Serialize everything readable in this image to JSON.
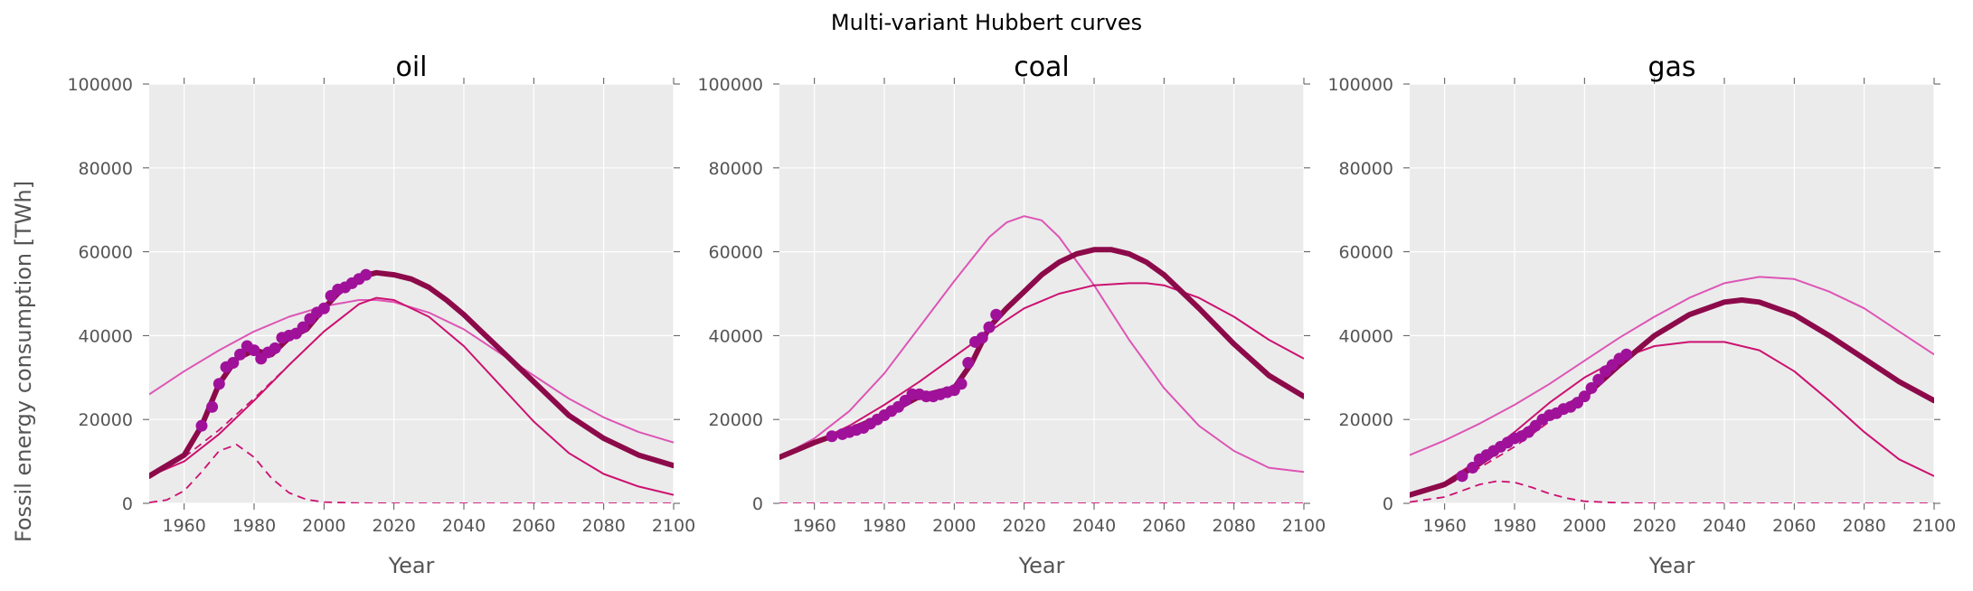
{
  "figure": {
    "suptitle": "Multi-variant Hubbert curves",
    "ylabel": "Fossil energy consumption [TWh]",
    "xlabel": "Year"
  },
  "colors": {
    "background": "#ebebeb",
    "grid": "#ffffff",
    "thick": "#8c0a4a",
    "medium": "#cc1170",
    "light": "#dd55b5",
    "marker": "#a0119a"
  },
  "chart_data": [
    {
      "type": "line",
      "title": "oil",
      "xlim": [
        1950,
        2100
      ],
      "ylim": [
        0,
        100000
      ],
      "xticks": [
        1960,
        1980,
        2000,
        2020,
        2040,
        2060,
        2080,
        2100
      ],
      "yticks": [
        0,
        20000,
        40000,
        60000,
        80000,
        100000
      ],
      "grid": true,
      "observed": {
        "x": [
          1965,
          1968,
          1970,
          1972,
          1974,
          1976,
          1978,
          1980,
          1982,
          1984,
          1986,
          1988,
          1990,
          1992,
          1994,
          1996,
          1998,
          2000,
          2002,
          2004,
          2006,
          2008,
          2010,
          2012
        ],
        "y": [
          18500,
          23000,
          28500,
          32500,
          33500,
          35500,
          37500,
          36500,
          34500,
          36000,
          37000,
          39500,
          40000,
          40500,
          42000,
          44000,
          45500,
          46500,
          49500,
          51000,
          51500,
          52500,
          53500,
          54500
        ]
      },
      "sum_curve": {
        "x": [
          1950,
          1960,
          1965,
          1970,
          1975,
          1980,
          1985,
          1990,
          1995,
          2000,
          2005,
          2010,
          2015,
          2020,
          2025,
          2030,
          2035,
          2040,
          2045,
          2050,
          2060,
          2070,
          2080,
          2090,
          2100
        ],
        "y": [
          6500,
          11500,
          18500,
          28500,
          34500,
          36500,
          35500,
          39500,
          41500,
          46500,
          51000,
          54000,
          55000,
          54500,
          53500,
          51500,
          48500,
          45000,
          41000,
          37000,
          29000,
          21000,
          15500,
          11500,
          9000
        ]
      },
      "fit_curve_a": {
        "x": [
          1950,
          1960,
          1970,
          1980,
          1990,
          2000,
          2010,
          2015,
          2020,
          2030,
          2040,
          2050,
          2060,
          2070,
          2080,
          2090,
          2100
        ],
        "y": [
          6500,
          10000,
          16500,
          24500,
          33000,
          41000,
          47500,
          49000,
          48500,
          44500,
          37500,
          28500,
          19500,
          12000,
          7000,
          4000,
          2000
        ]
      },
      "fit_curve_b": {
        "x": [
          1950,
          1960,
          1970,
          1980,
          1990,
          2000,
          2010,
          2015,
          2020,
          2030,
          2040,
          2050,
          2060,
          2070,
          2080,
          2090,
          2100
        ],
        "y": [
          26000,
          31500,
          36500,
          41000,
          44500,
          47000,
          48500,
          48500,
          48000,
          45500,
          41500,
          36000,
          30500,
          25000,
          20500,
          17000,
          14500
        ]
      },
      "component_dashed": [
        {
          "x": [
            1950,
            1955,
            1960,
            1965,
            1970,
            1975,
            1980,
            1985,
            1990,
            1995,
            2000,
            2010,
            2020,
            2100
          ],
          "y": [
            200,
            800,
            3000,
            7500,
            12500,
            14000,
            11000,
            6000,
            2500,
            900,
            300,
            50,
            0,
            0
          ]
        },
        {
          "x": [
            1950,
            1960,
            1970,
            1980,
            1990,
            2000
          ],
          "y": [
            6000,
            11000,
            17500,
            25000,
            33000,
            41000
          ]
        }
      ]
    },
    {
      "type": "line",
      "title": "coal",
      "xlim": [
        1950,
        2100
      ],
      "ylim": [
        0,
        100000
      ],
      "xticks": [
        1960,
        1980,
        2000,
        2020,
        2040,
        2060,
        2080,
        2100
      ],
      "yticks": [
        0,
        20000,
        40000,
        60000,
        80000,
        100000
      ],
      "grid": true,
      "observed": {
        "x": [
          1965,
          1968,
          1970,
          1972,
          1974,
          1976,
          1978,
          1980,
          1982,
          1984,
          1986,
          1988,
          1990,
          1992,
          1994,
          1996,
          1998,
          2000,
          2002,
          2004,
          2006,
          2008,
          2010,
          2012
        ],
        "y": [
          16000,
          16500,
          17000,
          17500,
          18000,
          19000,
          20000,
          21000,
          22000,
          23000,
          24500,
          26000,
          26000,
          25500,
          25500,
          26000,
          26500,
          27000,
          28500,
          33500,
          38500,
          39500,
          42000,
          45000
        ]
      },
      "sum_curve": {
        "x": [
          1950,
          1960,
          1970,
          1980,
          1990,
          2000,
          2005,
          2010,
          2015,
          2020,
          2025,
          2030,
          2035,
          2040,
          2045,
          2050,
          2055,
          2060,
          2070,
          2080,
          2090,
          2100
        ],
        "y": [
          11000,
          14500,
          17500,
          21000,
          25500,
          27500,
          33500,
          42000,
          46500,
          50500,
          54500,
          57500,
          59500,
          60500,
          60500,
          59500,
          57500,
          54500,
          46500,
          38000,
          30500,
          25500
        ]
      },
      "fit_curve_a": {
        "x": [
          1950,
          1960,
          1970,
          1980,
          1990,
          2000,
          2010,
          2020,
          2030,
          2040,
          2050,
          2055,
          2060,
          2070,
          2080,
          2090,
          2100
        ],
        "y": [
          11000,
          14500,
          18500,
          23500,
          29000,
          35000,
          41000,
          46500,
          50000,
          52000,
          52500,
          52500,
          52000,
          49000,
          44500,
          39000,
          34500
        ]
      },
      "fit_curve_b": {
        "x": [
          1950,
          1960,
          1970,
          1980,
          1990,
          2000,
          2010,
          2015,
          2020,
          2025,
          2030,
          2040,
          2050,
          2060,
          2070,
          2080,
          2090,
          2100
        ],
        "y": [
          11000,
          15500,
          22000,
          31000,
          42000,
          53000,
          63500,
          67000,
          68500,
          67500,
          63500,
          52000,
          39000,
          27500,
          18500,
          12500,
          8500,
          7500
        ]
      },
      "component_dashed": [
        {
          "x": [
            1950,
            2100
          ],
          "y": [
            0,
            0
          ]
        }
      ]
    },
    {
      "type": "line",
      "title": "gas",
      "xlim": [
        1950,
        2100
      ],
      "ylim": [
        0,
        100000
      ],
      "xticks": [
        1960,
        1980,
        2000,
        2020,
        2040,
        2060,
        2080,
        2100
      ],
      "yticks": [
        0,
        20000,
        40000,
        60000,
        80000,
        100000
      ],
      "grid": true,
      "observed": {
        "x": [
          1965,
          1968,
          1970,
          1972,
          1974,
          1976,
          1978,
          1980,
          1982,
          1984,
          1986,
          1988,
          1990,
          1992,
          1994,
          1996,
          1998,
          2000,
          2002,
          2004,
          2006,
          2008,
          2010,
          2012
        ],
        "y": [
          6500,
          8500,
          10500,
          11500,
          12500,
          13500,
          14500,
          15500,
          16000,
          17000,
          18500,
          20000,
          21000,
          21500,
          22500,
          23000,
          24000,
          25500,
          27500,
          29500,
          31500,
          33000,
          34500,
          35500
        ]
      },
      "sum_curve": {
        "x": [
          1950,
          1960,
          1970,
          1980,
          1990,
          2000,
          2010,
          2020,
          2030,
          2040,
          2045,
          2050,
          2060,
          2070,
          2080,
          2090,
          2100
        ],
        "y": [
          2000,
          4500,
          9500,
          15500,
          21000,
          25500,
          33000,
          40000,
          45000,
          48000,
          48500,
          48000,
          45000,
          40000,
          34500,
          29000,
          24500
        ]
      },
      "fit_curve_a": {
        "x": [
          1950,
          1960,
          1970,
          1980,
          1990,
          2000,
          2010,
          2020,
          2030,
          2035,
          2040,
          2050,
          2060,
          2070,
          2080,
          2090,
          2100
        ],
        "y": [
          2000,
          5000,
          10500,
          17000,
          24000,
          30000,
          34500,
          37500,
          38500,
          38500,
          38500,
          36500,
          31500,
          24500,
          17000,
          10500,
          6500
        ]
      },
      "fit_curve_b": {
        "x": [
          1950,
          1960,
          1970,
          1980,
          1990,
          2000,
          2010,
          2020,
          2030,
          2040,
          2050,
          2060,
          2070,
          2080,
          2090,
          2100
        ],
        "y": [
          11500,
          15000,
          19000,
          23500,
          28500,
          34000,
          39500,
          44500,
          49000,
          52500,
          54000,
          53500,
          50500,
          46500,
          41000,
          35500
        ]
      },
      "component_dashed": [
        {
          "x": [
            1950,
            1960,
            1965,
            1970,
            1975,
            1980,
            1985,
            1990,
            1995,
            2000,
            2010,
            2020,
            2100
          ],
          "y": [
            300,
            1500,
            3000,
            4500,
            5300,
            5000,
            3800,
            2300,
            1200,
            500,
            100,
            0,
            0
          ]
        },
        {
          "x": [
            1950,
            1960,
            1970,
            1980,
            1990,
            2000
          ],
          "y": [
            1800,
            4000,
            8500,
            13500,
            19500,
            25500
          ]
        }
      ]
    }
  ]
}
